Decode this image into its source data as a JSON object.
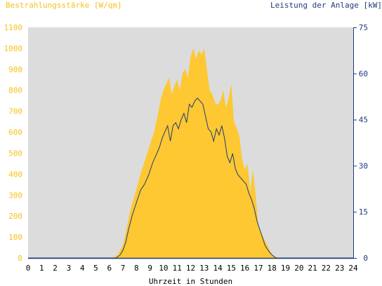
{
  "header": {
    "left_label": "Bestrahlungsstärke [W/qm]",
    "right_label": "Leistung der Anlage [kW]"
  },
  "colors": {
    "irradiance_fill": "#fdc831",
    "irradiance_text": "#f5c21b",
    "power_line": "#203a7a",
    "plot_bg": "#dcdcdc",
    "axis": "#203a7a"
  },
  "chart_data": {
    "type": "area",
    "xlabel": "Uhrzeit in Stunden",
    "xlim": [
      0,
      24
    ],
    "x_ticks": [
      "0",
      "1",
      "2",
      "3",
      "4",
      "5",
      "6",
      "7",
      "8",
      "9",
      "10",
      "11",
      "12",
      "13",
      "14",
      "15",
      "16",
      "17",
      "18",
      "19",
      "20",
      "21",
      "22",
      "23",
      "24"
    ],
    "y_left": {
      "label": "Bestrahlungsstärke [W/qm]",
      "lim": [
        0,
        1100
      ],
      "ticks": [
        "0",
        "100",
        "200",
        "300",
        "400",
        "500",
        "600",
        "700",
        "800",
        "900",
        "1000",
        "1100"
      ]
    },
    "y_right": {
      "label": "Leistung der Anlage [kW]",
      "lim": [
        0,
        75
      ],
      "ticks": [
        "0",
        "15",
        "30",
        "45",
        "60",
        "75"
      ]
    },
    "series": [
      {
        "name": "Bestrahlungsstärke [W/qm]",
        "axis": "left",
        "style": "area",
        "x": [
          0,
          6.2,
          6.6,
          7.0,
          7.3,
          7.6,
          8.0,
          8.3,
          8.6,
          9.0,
          9.3,
          9.6,
          9.8,
          10.0,
          10.2,
          10.4,
          10.6,
          10.8,
          11.0,
          11.2,
          11.4,
          11.6,
          11.8,
          12.0,
          12.2,
          12.4,
          12.6,
          12.8,
          13.0,
          13.2,
          13.4,
          13.6,
          13.8,
          14.0,
          14.2,
          14.4,
          14.6,
          14.8,
          15.0,
          15.2,
          15.4,
          15.6,
          15.8,
          16.0,
          16.2,
          16.4,
          16.6,
          16.8,
          17.0,
          17.3,
          17.6,
          18.0,
          18.3,
          18.6,
          24
        ],
        "y": [
          0,
          0,
          15,
          60,
          150,
          240,
          330,
          400,
          460,
          540,
          600,
          690,
          760,
          800,
          830,
          860,
          780,
          820,
          850,
          800,
          880,
          900,
          860,
          960,
          1000,
          950,
          990,
          970,
          1000,
          900,
          800,
          780,
          740,
          730,
          750,
          800,
          720,
          760,
          830,
          650,
          620,
          580,
          470,
          420,
          450,
          320,
          420,
          300,
          150,
          110,
          70,
          15,
          5,
          0,
          0
        ]
      },
      {
        "name": "Leistung der Anlage [kW]",
        "axis": "right",
        "style": "line",
        "x": [
          0,
          6.5,
          6.8,
          7.0,
          7.2,
          7.4,
          7.7,
          8.0,
          8.3,
          8.6,
          8.9,
          9.2,
          9.5,
          9.7,
          9.9,
          10.1,
          10.3,
          10.5,
          10.7,
          10.9,
          11.1,
          11.3,
          11.5,
          11.7,
          11.9,
          12.1,
          12.3,
          12.5,
          12.7,
          12.9,
          13.1,
          13.3,
          13.5,
          13.7,
          13.9,
          14.1,
          14.3,
          14.5,
          14.7,
          14.9,
          15.1,
          15.3,
          15.5,
          15.7,
          15.9,
          16.1,
          16.3,
          16.5,
          16.7,
          16.9,
          17.2,
          17.5,
          17.8,
          18.0,
          18.3,
          24
        ],
        "y": [
          0,
          0,
          1,
          2.5,
          5,
          9,
          14,
          18,
          22,
          24,
          27,
          31,
          34,
          36,
          39,
          41,
          43,
          38,
          43,
          44,
          42,
          45,
          47,
          44,
          50,
          49,
          51,
          52,
          51,
          50,
          46,
          42,
          41,
          38,
          42,
          40,
          43,
          39,
          33,
          31,
          34,
          29,
          27,
          26,
          25,
          24,
          21,
          19,
          16,
          12,
          8,
          4,
          2,
          1,
          0,
          0
        ]
      }
    ]
  }
}
